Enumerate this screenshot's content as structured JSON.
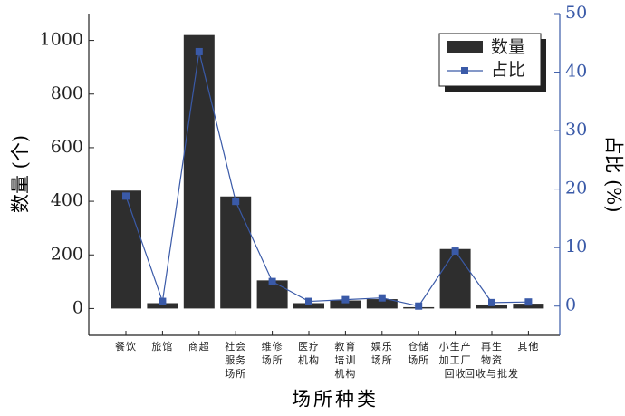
{
  "chart_data": {
    "type": "bar_line",
    "x_label": "场所种类",
    "y_label": "数量 (个)",
    "y2_label": "占比 (%)",
    "categories": [
      "餐饮",
      "旅馆",
      "商超",
      "社会\n服务\n场所",
      "维修\n场所",
      "医疗\n机构",
      "教育\n培训\n机构",
      "娱乐\n场所",
      "仓储\n场所",
      "小生产\n加工厂\n回收",
      "再生\n物资\n回收与批发",
      "其他"
    ],
    "series": [
      {
        "name": "数量",
        "color": "#2e2e2e",
        "type": "bar",
        "values": [
          440,
          20,
          1020,
          418,
          105,
          20,
          30,
          35,
          5,
          222,
          15,
          18
        ]
      },
      {
        "name": "占比",
        "color": "#3a5aa8",
        "type": "line",
        "axis": "y2",
        "values": [
          18.8,
          0.8,
          43.5,
          17.9,
          4.2,
          0.8,
          1.1,
          1.4,
          0,
          9.4,
          0.6,
          0.7
        ]
      }
    ],
    "ylim": [
      -100,
      1100
    ],
    "yticks": [
      0,
      200,
      400,
      600,
      800,
      1000
    ],
    "y2lim": [
      -5,
      50
    ],
    "y2ticks": [
      0,
      10,
      20,
      30,
      40,
      50
    ],
    "legend": "upper right"
  }
}
